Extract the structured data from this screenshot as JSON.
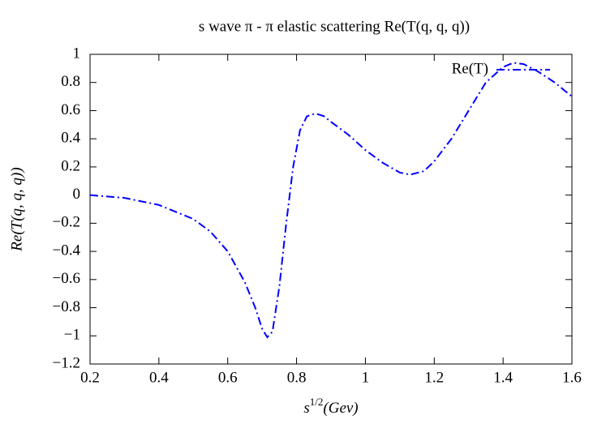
{
  "chart_data": {
    "type": "line",
    "title": "s wave π - π elastic scattering Re(T(q, q, q))",
    "xlabel": {
      "base": "s",
      "sup": "1/2",
      "rest": "(Gev)"
    },
    "ylabel": "Re(T(q, q, q))",
    "x": [
      0.2,
      0.3,
      0.4,
      0.5,
      0.55,
      0.6,
      0.65,
      0.68,
      0.7,
      0.715,
      0.73,
      0.75,
      0.77,
      0.79,
      0.81,
      0.83,
      0.855,
      0.88,
      0.9,
      0.95,
      1.0,
      1.05,
      1.1,
      1.13,
      1.17,
      1.2,
      1.25,
      1.3,
      1.35,
      1.4,
      1.43,
      1.46,
      1.5,
      1.55,
      1.6
    ],
    "series": [
      {
        "name": "Re(T)",
        "color": "#0000ff",
        "values": [
          0.0,
          -0.02,
          -0.07,
          -0.17,
          -0.26,
          -0.4,
          -0.62,
          -0.8,
          -0.95,
          -1.01,
          -0.97,
          -0.65,
          -0.2,
          0.2,
          0.46,
          0.56,
          0.58,
          0.56,
          0.52,
          0.43,
          0.32,
          0.23,
          0.16,
          0.145,
          0.17,
          0.24,
          0.4,
          0.6,
          0.8,
          0.91,
          0.94,
          0.93,
          0.88,
          0.8,
          0.7
        ]
      }
    ],
    "xlim": [
      0.2,
      1.6
    ],
    "xticks": [
      0.2,
      0.4,
      0.6,
      0.8,
      1,
      1.2,
      1.4,
      1.6
    ],
    "ylim": [
      -1.2,
      1
    ],
    "yticks": [
      {
        "value": -1.2,
        "label": "−1.2"
      },
      {
        "value": -1,
        "label": "−1"
      },
      {
        "value": -0.8,
        "label": "−0.8"
      },
      {
        "value": -0.6,
        "label": "−0.6"
      },
      {
        "value": -0.4,
        "label": "−0.4"
      },
      {
        "value": -0.2,
        "label": "−0.2"
      },
      0,
      0.2,
      0.4,
      0.6,
      0.8,
      1
    ],
    "legend": "top-right"
  }
}
